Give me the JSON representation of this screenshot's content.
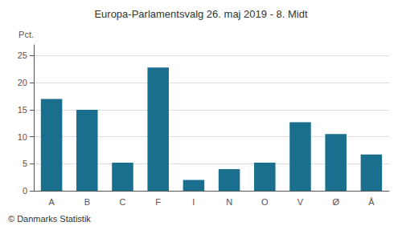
{
  "chart_data": {
    "type": "bar",
    "title": "Europa-Parlamentsvalg 26. maj 2019 - 8. Midt",
    "categories": [
      "A",
      "B",
      "C",
      "F",
      "I",
      "N",
      "O",
      "V",
      "Ø",
      "Å"
    ],
    "values": [
      17.0,
      15.0,
      5.2,
      22.8,
      2.0,
      4.0,
      5.2,
      12.7,
      10.5,
      6.7
    ],
    "color": "#1a6e8e",
    "ylabel": "Pct.",
    "ylim": [
      0,
      27
    ],
    "yticks": [
      0,
      5,
      10,
      15,
      20,
      25
    ],
    "grid": true,
    "annotations": [
      "© Danmarks Statistik"
    ]
  }
}
